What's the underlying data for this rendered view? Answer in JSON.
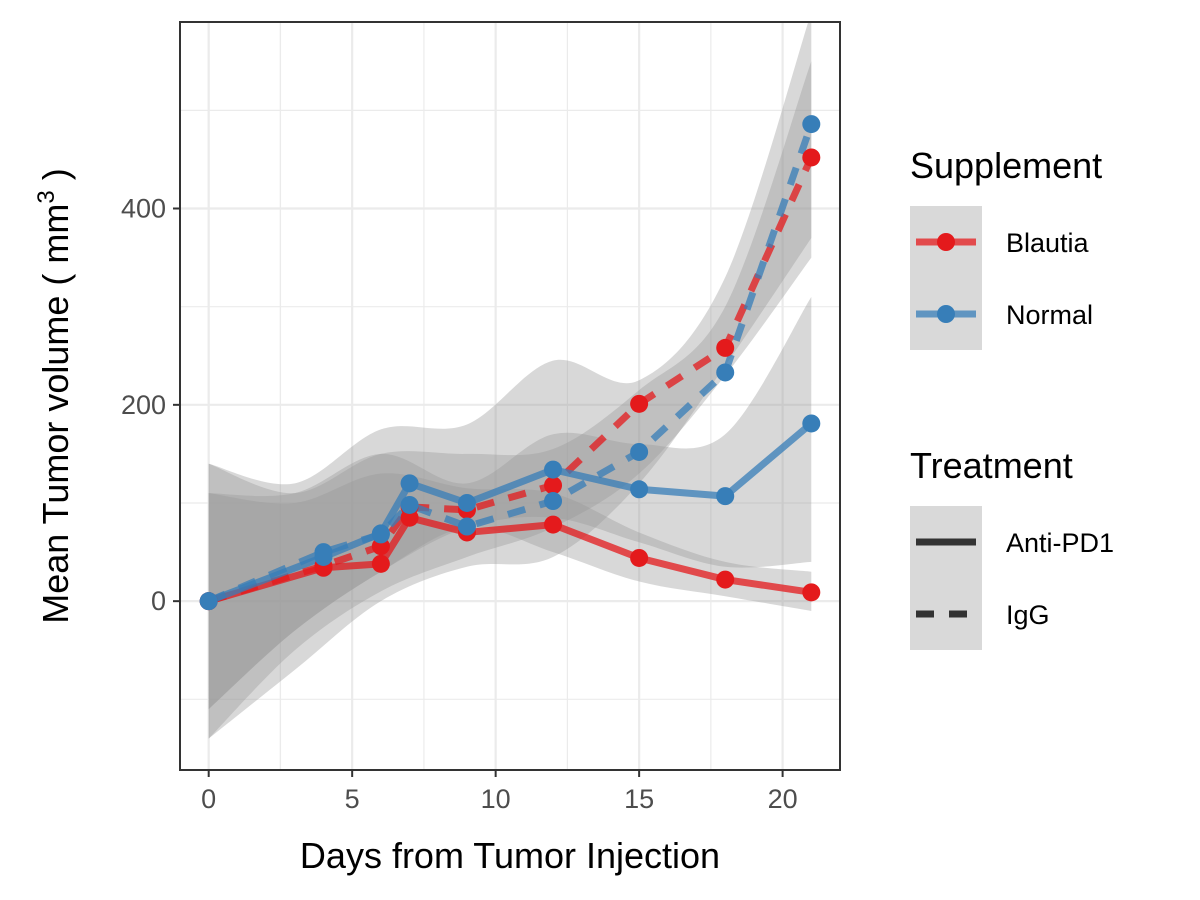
{
  "chart_data": {
    "type": "line",
    "xlabel": "Days from Tumor Injection",
    "ylabel_main": "Mean Tumor volume ( mm",
    "ylabel_sup": "3",
    "ylabel_tail": " )",
    "xlim": [
      -1,
      22
    ],
    "ylim": [
      -172,
      590
    ],
    "x_ticks": [
      0,
      5,
      10,
      15,
      20
    ],
    "x_tick_labels": [
      "0",
      "5",
      "10",
      "15",
      "20"
    ],
    "y_ticks": [
      0,
      200,
      400
    ],
    "y_tick_labels": [
      "0",
      "200",
      "400"
    ],
    "grid": true,
    "legend_position": "right",
    "legends": [
      {
        "title": "Supplement",
        "kind": "color",
        "items": [
          {
            "label": "Blautia",
            "color": "#e41a1c"
          },
          {
            "label": "Normal",
            "color": "#377eb8"
          }
        ]
      },
      {
        "title": "Treatment",
        "kind": "linetype",
        "items": [
          {
            "label": "Anti-PD1",
            "linetype": "solid"
          },
          {
            "label": "IgG",
            "linetype": "dashed"
          }
        ]
      }
    ],
    "series": [
      {
        "supplement": "Blautia",
        "treatment": "Anti-PD1",
        "color": "#e41a1c",
        "linetype": "solid",
        "x": [
          0,
          4,
          6,
          7,
          9,
          12,
          15,
          18,
          21
        ],
        "y": [
          0,
          34,
          38,
          85,
          70,
          78,
          44,
          22,
          9
        ]
      },
      {
        "supplement": "Blautia",
        "treatment": "IgG",
        "color": "#e41a1c",
        "linetype": "dashed",
        "x": [
          0,
          4,
          6,
          7,
          9,
          12,
          15,
          18,
          21
        ],
        "y": [
          0,
          36,
          56,
          96,
          93,
          118,
          201,
          258,
          452
        ]
      },
      {
        "supplement": "Normal",
        "treatment": "Anti-PD1",
        "color": "#377eb8",
        "linetype": "solid",
        "x": [
          0,
          4,
          6,
          7,
          9,
          12,
          15,
          18,
          21
        ],
        "y": [
          0,
          45,
          69,
          120,
          100,
          134,
          114,
          107,
          181
        ]
      },
      {
        "supplement": "Normal",
        "treatment": "IgG",
        "color": "#377eb8",
        "linetype": "dashed",
        "x": [
          0,
          4,
          6,
          7,
          9,
          12,
          15,
          18,
          21
        ],
        "y": [
          0,
          50,
          68,
          98,
          76,
          102,
          152,
          233,
          486
        ]
      }
    ],
    "bands": [
      {
        "name": "blautia-antipd1",
        "x": [
          0,
          3,
          6,
          9,
          12,
          15,
          18,
          21
        ],
        "lower": [
          -110,
          -30,
          30,
          75,
          50,
          20,
          5,
          -10
        ],
        "upper": [
          110,
          100,
          130,
          115,
          110,
          70,
          40,
          30
        ]
      },
      {
        "name": "normal-antipd1",
        "x": [
          0,
          3,
          6,
          9,
          12,
          15,
          18,
          21
        ],
        "lower": [
          -110,
          -30,
          30,
          75,
          85,
          60,
          35,
          40
        ],
        "upper": [
          110,
          110,
          150,
          120,
          170,
          160,
          170,
          310
        ]
      },
      {
        "name": "blautia-igg",
        "x": [
          0,
          3,
          6,
          9,
          12,
          15,
          18,
          21
        ],
        "lower": [
          -140,
          -50,
          10,
          45,
          75,
          130,
          230,
          350
        ],
        "upper": [
          140,
          110,
          150,
          150,
          155,
          215,
          300,
          550
        ]
      },
      {
        "name": "normal-igg",
        "x": [
          0,
          3,
          6,
          9,
          12,
          15,
          18,
          21
        ],
        "lower": [
          -140,
          -70,
          0,
          35,
          45,
          120,
          240,
          370
        ],
        "upper": [
          140,
          120,
          175,
          180,
          245,
          225,
          330,
          600
        ]
      }
    ],
    "band_color": "#999999",
    "band_opacity": 0.38,
    "line_opacity": 0.75
  }
}
